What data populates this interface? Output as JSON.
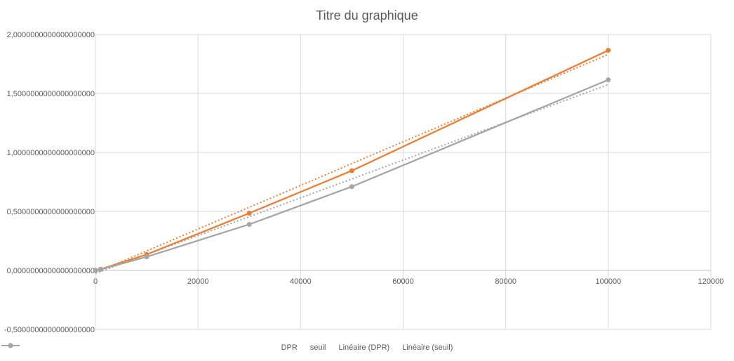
{
  "chart_data": {
    "type": "line",
    "title": "Titre du graphique",
    "xlabel": "",
    "ylabel": "",
    "xlim": [
      0,
      120000
    ],
    "ylim": [
      -0.5,
      2.0
    ],
    "x_ticks": [
      "0",
      "20000",
      "40000",
      "60000",
      "80000",
      "100000",
      "120000"
    ],
    "y_ticks": [
      "-0,5000000000000000000",
      "0,0000000000000000000",
      "0,5000000000000000000",
      "1,0000000000000000000",
      "1,5000000000000000000",
      "2,0000000000000000000"
    ],
    "grid": true,
    "legend_position": "bottom",
    "series": [
      {
        "name": "DPR",
        "color": "#ED7D31",
        "style": "line-markers",
        "x": [
          0,
          1000,
          10000,
          30000,
          50000,
          100000
        ],
        "y": [
          0.0,
          0.01,
          0.135,
          0.485,
          0.845,
          1.865
        ]
      },
      {
        "name": "seuil",
        "color": "#A5A5A5",
        "style": "line-markers",
        "x": [
          0,
          1000,
          10000,
          30000,
          50000,
          100000
        ],
        "y": [
          0.0,
          0.008,
          0.115,
          0.39,
          0.71,
          1.615
        ]
      }
    ],
    "trendlines": [
      {
        "name": "Linéaire (DPR)",
        "color": "#ED7D31",
        "x": [
          0,
          100000
        ],
        "y": [
          -0.02,
          1.83
        ]
      },
      {
        "name": "Linéaire (seuil)",
        "color": "#A5A5A5",
        "x": [
          0,
          100000
        ],
        "y": [
          -0.025,
          1.575
        ]
      }
    ]
  }
}
